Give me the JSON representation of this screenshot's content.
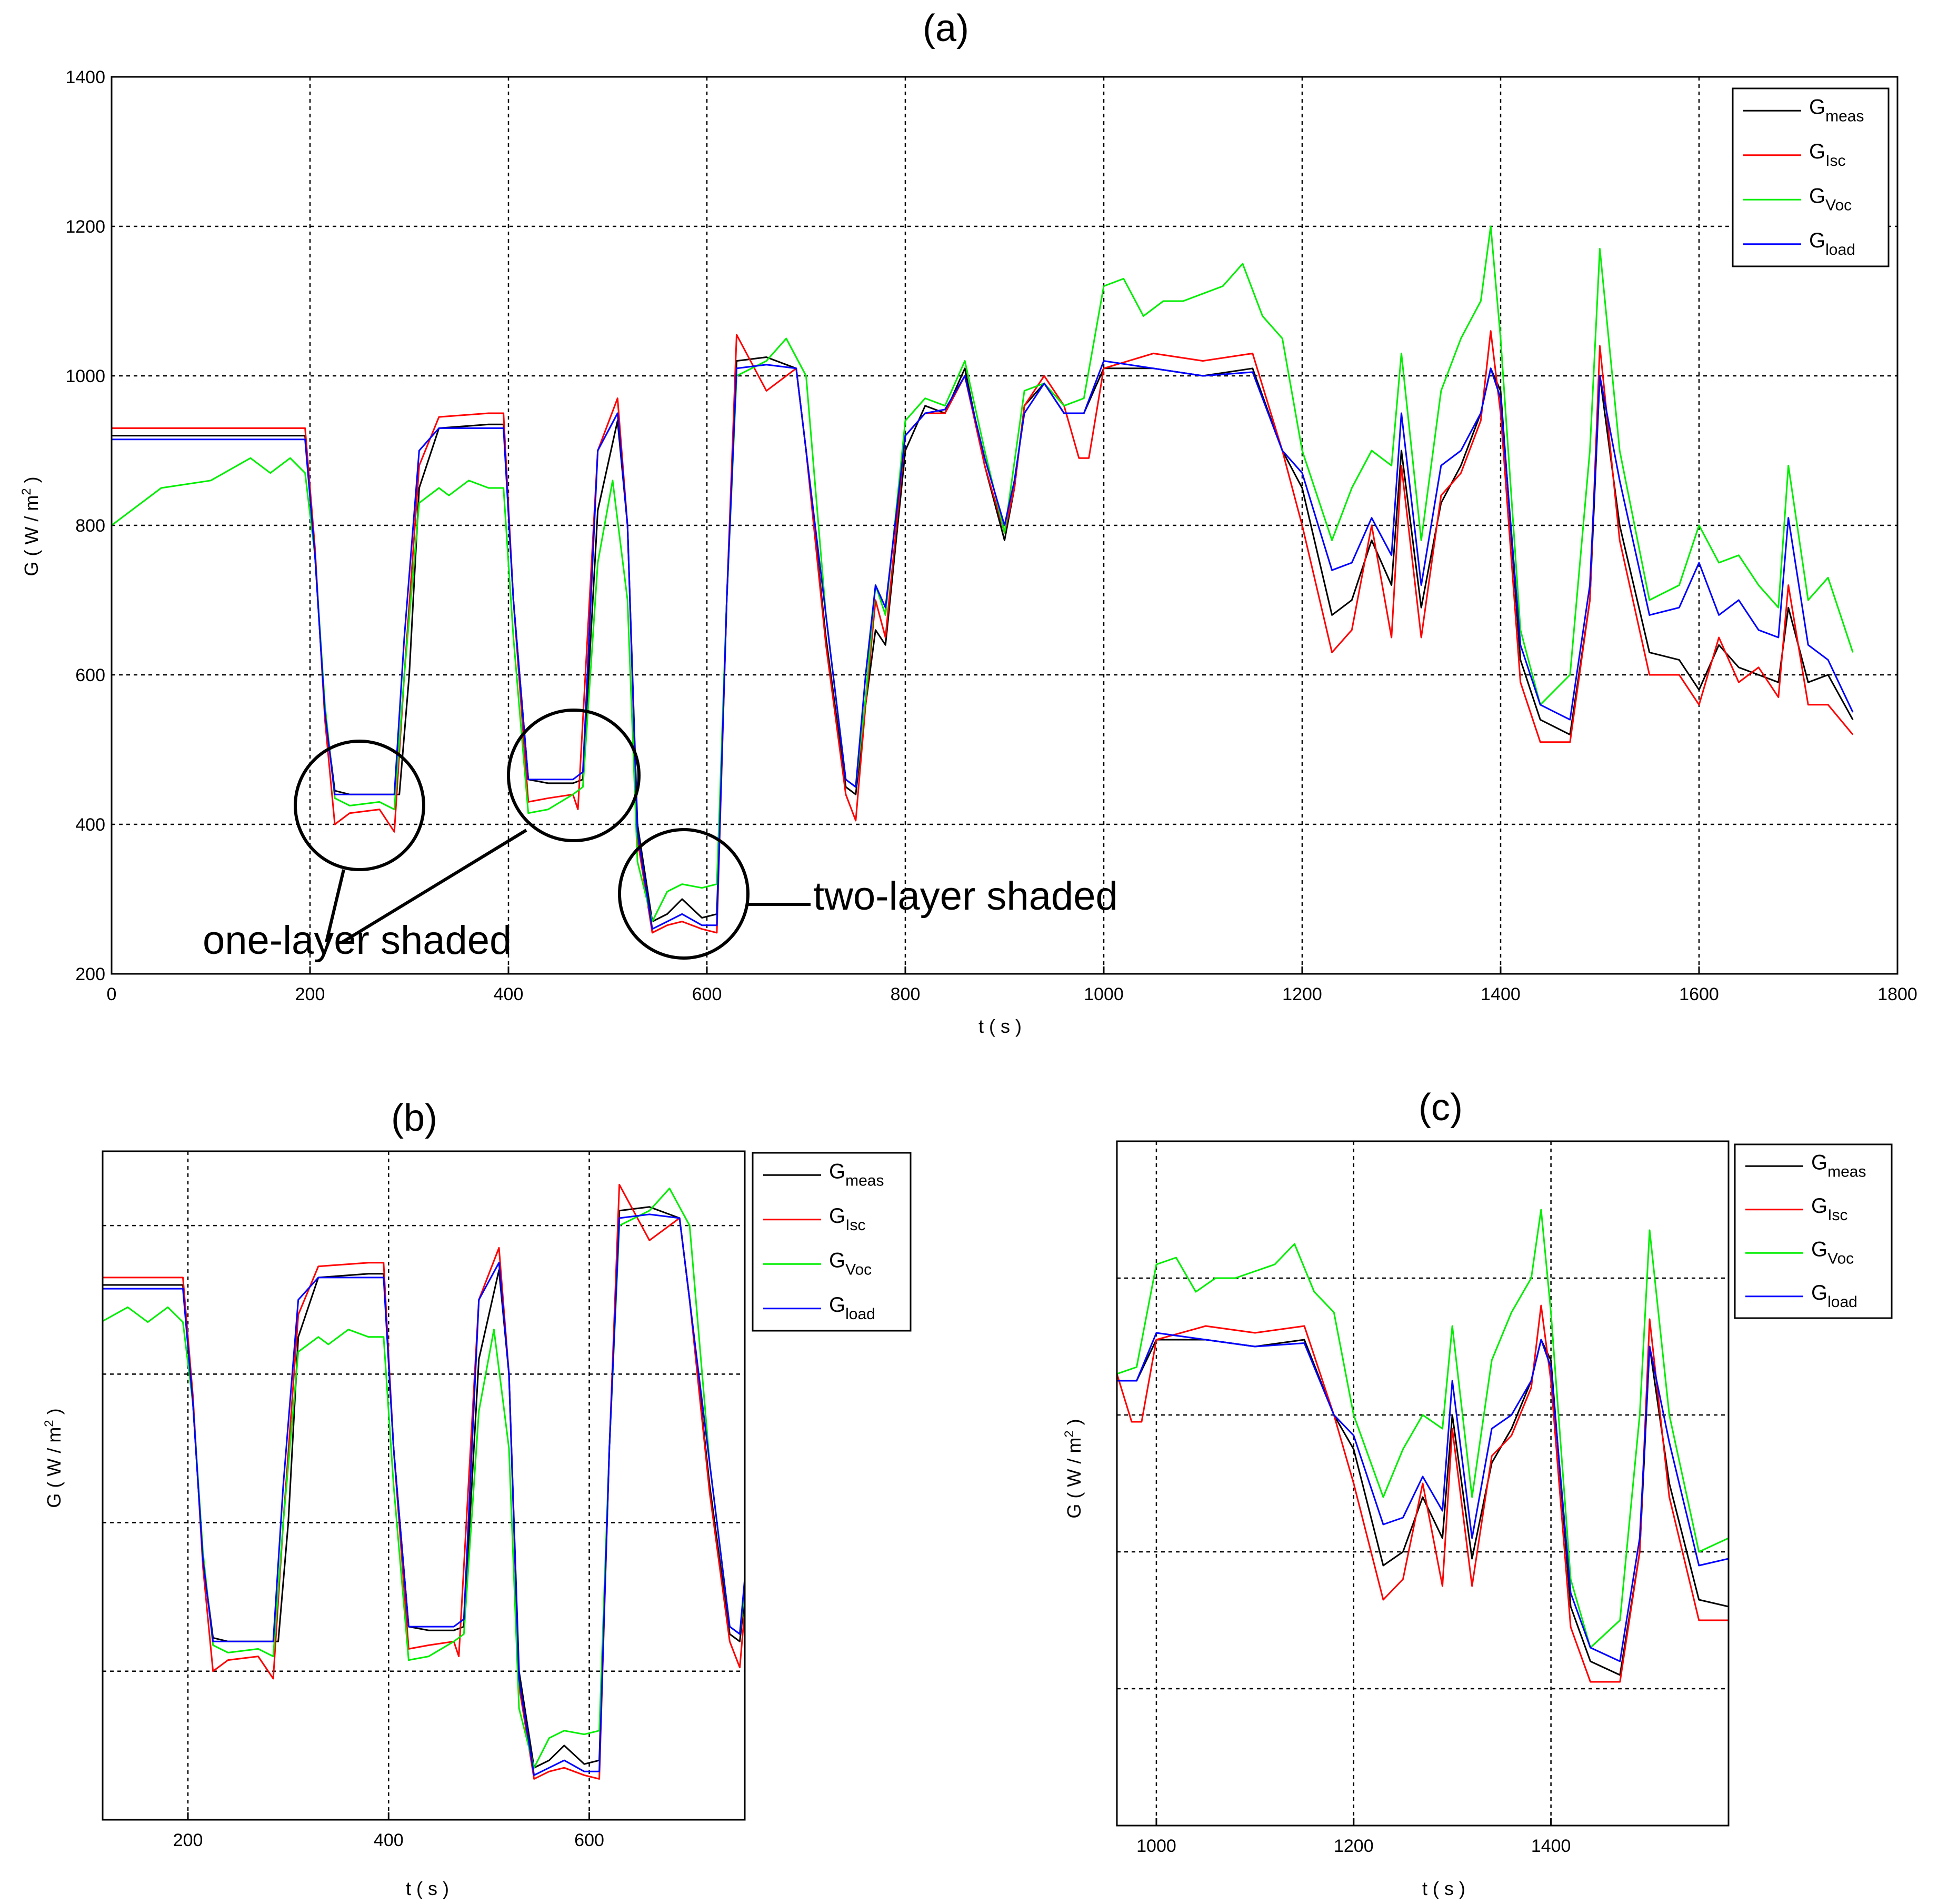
{
  "chart_data": [
    {
      "panel": "(a)",
      "type": "line",
      "title": "(a)",
      "xlabel": "t ( s )",
      "ylabel": "G ( W / m2 )",
      "xlim": [
        0,
        1800
      ],
      "ylim": [
        200,
        1400
      ],
      "xticks": [
        0,
        200,
        400,
        600,
        800,
        1000,
        1200,
        1400,
        1600,
        1800
      ],
      "yticks": [
        200,
        400,
        600,
        800,
        1000,
        1200,
        1400
      ],
      "grid": true,
      "legend_position": "top-right",
      "series": [
        {
          "name": "Gmeas",
          "color": "#000000",
          "x": [
            0,
            100,
            195,
            205,
            215,
            225,
            240,
            270,
            290,
            300,
            310,
            330,
            380,
            395,
            405,
            420,
            440,
            465,
            475,
            490,
            510,
            520,
            530,
            545,
            560,
            575,
            595,
            610,
            620,
            630,
            660,
            690,
            700,
            720,
            740,
            750,
            760,
            770,
            780,
            800,
            820,
            840,
            860,
            880,
            900,
            910,
            920,
            940,
            960,
            980,
            1000,
            1050,
            1100,
            1150,
            1180,
            1200,
            1230,
            1250,
            1270,
            1290,
            1300,
            1320,
            1340,
            1360,
            1380,
            1390,
            1400,
            1420,
            1440,
            1470,
            1490,
            1500,
            1520,
            1550,
            1580,
            1600,
            1620,
            1640,
            1660,
            1680,
            1690,
            1710,
            1730,
            1755
          ],
          "y": [
            920,
            920,
            920,
            760,
            550,
            445,
            440,
            440,
            440,
            600,
            850,
            930,
            935,
            935,
            700,
            460,
            455,
            455,
            460,
            820,
            940,
            800,
            400,
            270,
            280,
            300,
            275,
            280,
            700,
            1020,
            1025,
            1010,
            900,
            650,
            450,
            440,
            560,
            660,
            640,
            900,
            960,
            950,
            1010,
            880,
            780,
            850,
            960,
            990,
            950,
            950,
            1010,
            1010,
            1000,
            1010,
            900,
            850,
            680,
            700,
            780,
            720,
            900,
            690,
            830,
            880,
            950,
            1010,
            980,
            620,
            540,
            520,
            700,
            1000,
            800,
            630,
            620,
            580,
            640,
            610,
            600,
            590,
            690,
            590,
            600,
            540
          ]
        },
        {
          "name": "GIsc",
          "color": "#ff0000",
          "x": [
            0,
            100,
            195,
            205,
            215,
            225,
            240,
            270,
            285,
            295,
            310,
            330,
            380,
            395,
            405,
            420,
            440,
            465,
            470,
            490,
            510,
            520,
            530,
            545,
            560,
            575,
            595,
            610,
            620,
            630,
            660,
            690,
            700,
            720,
            740,
            750,
            760,
            770,
            780,
            800,
            820,
            840,
            860,
            880,
            900,
            910,
            920,
            940,
            960,
            975,
            985,
            1000,
            1050,
            1100,
            1150,
            1180,
            1200,
            1230,
            1250,
            1270,
            1290,
            1300,
            1320,
            1340,
            1360,
            1380,
            1390,
            1400,
            1420,
            1440,
            1470,
            1490,
            1500,
            1520,
            1550,
            1580,
            1600,
            1620,
            1640,
            1660,
            1680,
            1690,
            1710,
            1730,
            1755
          ],
          "y": [
            930,
            930,
            930,
            770,
            540,
            400,
            415,
            420,
            390,
            600,
            880,
            945,
            950,
            950,
            700,
            430,
            435,
            440,
            420,
            900,
            970,
            800,
            380,
            255,
            265,
            270,
            260,
            255,
            700,
            1055,
            980,
            1010,
            900,
            640,
            440,
            405,
            560,
            700,
            650,
            920,
            950,
            950,
            1000,
            880,
            790,
            850,
            960,
            1000,
            960,
            890,
            890,
            1010,
            1030,
            1020,
            1030,
            900,
            800,
            630,
            660,
            800,
            650,
            880,
            650,
            840,
            870,
            940,
            1060,
            950,
            590,
            510,
            510,
            700,
            1040,
            780,
            600,
            600,
            560,
            650,
            590,
            610,
            570,
            720,
            560,
            560,
            520
          ]
        },
        {
          "name": "GVoc",
          "color": "#00ee00",
          "x": [
            0,
            50,
            100,
            140,
            160,
            180,
            195,
            205,
            215,
            225,
            240,
            270,
            285,
            295,
            310,
            330,
            340,
            360,
            380,
            395,
            405,
            420,
            440,
            465,
            475,
            490,
            505,
            520,
            530,
            545,
            560,
            575,
            595,
            610,
            620,
            630,
            660,
            680,
            700,
            720,
            740,
            750,
            760,
            770,
            780,
            800,
            820,
            840,
            860,
            880,
            900,
            920,
            940,
            960,
            980,
            1000,
            1020,
            1040,
            1060,
            1080,
            1100,
            1120,
            1140,
            1160,
            1180,
            1200,
            1230,
            1250,
            1270,
            1290,
            1300,
            1320,
            1340,
            1360,
            1380,
            1390,
            1400,
            1420,
            1440,
            1470,
            1490,
            1500,
            1520,
            1550,
            1580,
            1600,
            1620,
            1640,
            1660,
            1680,
            1690,
            1710,
            1730,
            1755
          ],
          "y": [
            800,
            850,
            860,
            890,
            870,
            890,
            870,
            760,
            560,
            435,
            425,
            430,
            420,
            600,
            830,
            850,
            840,
            860,
            850,
            850,
            650,
            415,
            420,
            440,
            450,
            750,
            860,
            700,
            350,
            270,
            310,
            320,
            315,
            320,
            700,
            1000,
            1020,
            1050,
            1000,
            680,
            460,
            450,
            570,
            720,
            680,
            940,
            970,
            960,
            1020,
            900,
            790,
            980,
            990,
            960,
            970,
            1120,
            1130,
            1080,
            1100,
            1100,
            1110,
            1120,
            1150,
            1080,
            1050,
            900,
            780,
            850,
            900,
            880,
            1030,
            780,
            980,
            1050,
            1100,
            1200,
            1050,
            660,
            560,
            600,
            900,
            1170,
            900,
            700,
            720,
            800,
            750,
            760,
            720,
            690,
            880,
            700,
            730,
            630
          ]
        },
        {
          "name": "Gload",
          "color": "#0000ff",
          "x": [
            0,
            100,
            195,
            205,
            215,
            225,
            240,
            270,
            285,
            295,
            310,
            330,
            380,
            395,
            405,
            420,
            440,
            465,
            475,
            490,
            510,
            520,
            530,
            545,
            560,
            575,
            595,
            610,
            620,
            630,
            660,
            690,
            700,
            720,
            740,
            750,
            760,
            770,
            780,
            800,
            820,
            840,
            860,
            880,
            900,
            910,
            920,
            940,
            960,
            980,
            1000,
            1050,
            1100,
            1150,
            1180,
            1200,
            1230,
            1250,
            1270,
            1290,
            1300,
            1320,
            1340,
            1360,
            1380,
            1390,
            1400,
            1420,
            1440,
            1470,
            1490,
            1500,
            1520,
            1550,
            1580,
            1600,
            1620,
            1640,
            1660,
            1680,
            1690,
            1710,
            1730,
            1755
          ],
          "y": [
            915,
            915,
            915,
            760,
            550,
            440,
            440,
            440,
            440,
            650,
            900,
            930,
            930,
            930,
            700,
            460,
            460,
            460,
            470,
            900,
            950,
            800,
            390,
            260,
            270,
            280,
            265,
            265,
            700,
            1010,
            1015,
            1010,
            900,
            680,
            460,
            450,
            600,
            720,
            690,
            920,
            950,
            955,
            1000,
            890,
            800,
            860,
            950,
            990,
            950,
            950,
            1020,
            1010,
            1000,
            1005,
            900,
            870,
            740,
            750,
            810,
            760,
            950,
            720,
            880,
            900,
            950,
            1010,
            970,
            640,
            560,
            540,
            720,
            1000,
            860,
            680,
            690,
            750,
            680,
            700,
            660,
            650,
            810,
            640,
            620,
            550
          ]
        }
      ],
      "annotations": [
        "one-layer shaded",
        "two-layer shaded"
      ]
    },
    {
      "panel": "(b)",
      "type": "line",
      "title": "(b)",
      "xlabel": "t ( s )",
      "ylabel": "G ( W / m2 )",
      "xlim": [
        115,
        755
      ],
      "ylim": [
        200,
        1100
      ],
      "xticks": [
        200,
        400,
        600
      ],
      "grid": true,
      "legend_position": "top-right",
      "series_ref": "zoom of (a)"
    },
    {
      "panel": "(c)",
      "type": "line",
      "title": "(c)",
      "xlabel": "t ( s )",
      "ylabel": "G ( W / m2 )",
      "xlim": [
        960,
        1580
      ],
      "ylim": [
        300,
        1300
      ],
      "xticks": [
        1000,
        1200,
        1400
      ],
      "grid": true,
      "legend_position": "top-right",
      "series_ref": "zoom of (a)"
    }
  ],
  "legend": {
    "entries": [
      {
        "base": "G",
        "sub": "meas",
        "color": "#000000"
      },
      {
        "base": "G",
        "sub": "Isc",
        "color": "#ff0000"
      },
      {
        "base": "G",
        "sub": "Voc",
        "color": "#00ee00"
      },
      {
        "base": "G",
        "sub": "load",
        "color": "#0000ff"
      }
    ]
  },
  "labels": {
    "a": "(a)",
    "b": "(b)",
    "c": "(c)",
    "xlabel": "t ( s )",
    "ylabel_main": "G ( W / m",
    "ylabel_sup": "2",
    "ylabel_end": " )",
    "one_layer": "one-layer shaded",
    "two_layer": "two-layer shaded"
  }
}
